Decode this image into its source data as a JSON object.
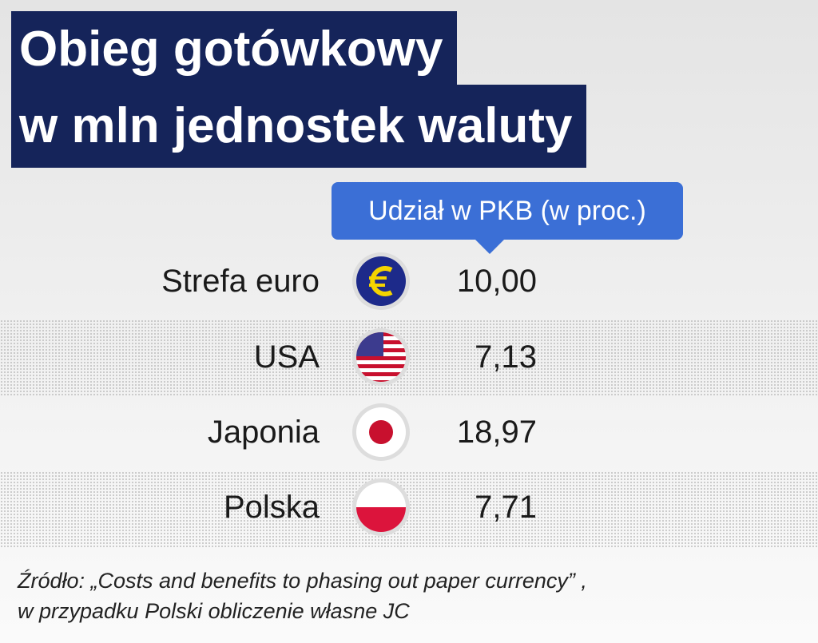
{
  "header": {
    "title_lines": [
      "Obieg gotówkowy",
      "w mln jednostek waluty"
    ]
  },
  "table": {
    "column_label": "Udział  w PKB (w proc.)",
    "rows": [
      [
        "Strefa euro",
        "10,00"
      ],
      [
        "USA",
        "7,13"
      ],
      [
        "Japonia",
        "18,97"
      ],
      [
        "Polska",
        "7,71"
      ]
    ]
  },
  "footer": {
    "source_lines": [
      "Źródło: „Costs and benefits to phasing out paper currency” ,",
      "w przypadku Polski obliczenie własne JC"
    ]
  }
}
